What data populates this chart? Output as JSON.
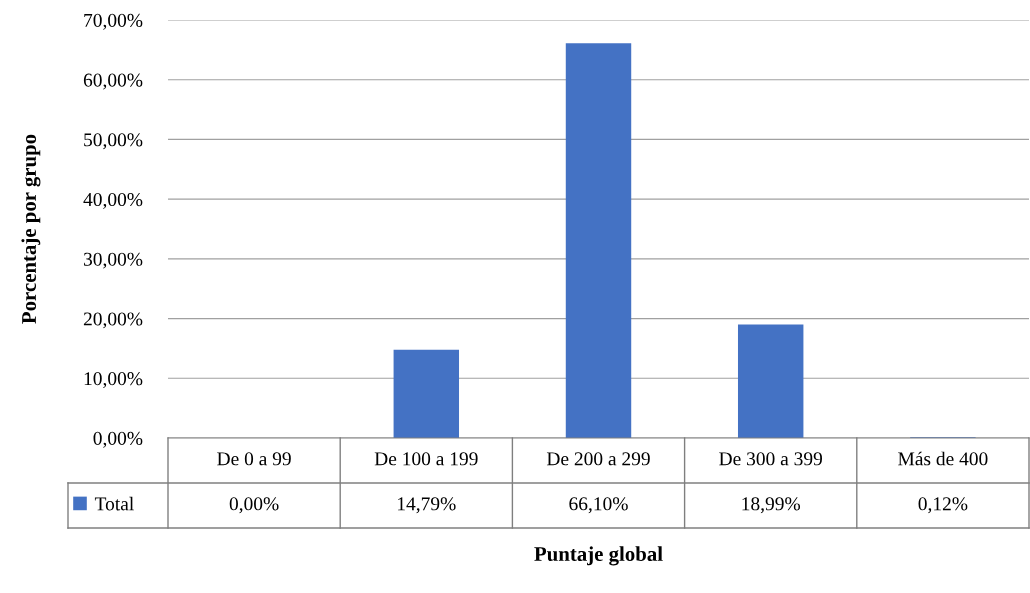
{
  "chart_data": {
    "type": "bar",
    "xlabel": "Puntaje global",
    "ylabel": "Porcentaje por grupo",
    "categories": [
      "De 0 a 99",
      "De 100 a 199",
      "De 200 a 299",
      "De 300 a 399",
      "Más de 400"
    ],
    "series": [
      {
        "name": "Total",
        "color": "#4472c4",
        "values": [
          0.0,
          14.79,
          66.1,
          18.99,
          0.12
        ],
        "value_labels": [
          "0,00%",
          "14,79%",
          "66,10%",
          "18,99%",
          "0,12%"
        ]
      }
    ],
    "ylim": [
      0,
      70
    ],
    "yticks": [
      {
        "value": 0,
        "label": "0,00%"
      },
      {
        "value": 10,
        "label": "10,00%"
      },
      {
        "value": 20,
        "label": "20,00%"
      },
      {
        "value": 30,
        "label": "30,00%"
      },
      {
        "value": 40,
        "label": "40,00%"
      },
      {
        "value": 50,
        "label": "50,00%"
      },
      {
        "value": 60,
        "label": "60,00%"
      },
      {
        "value": 70,
        "label": "70,00%"
      }
    ],
    "grid": "y",
    "legend": "bottom left"
  }
}
